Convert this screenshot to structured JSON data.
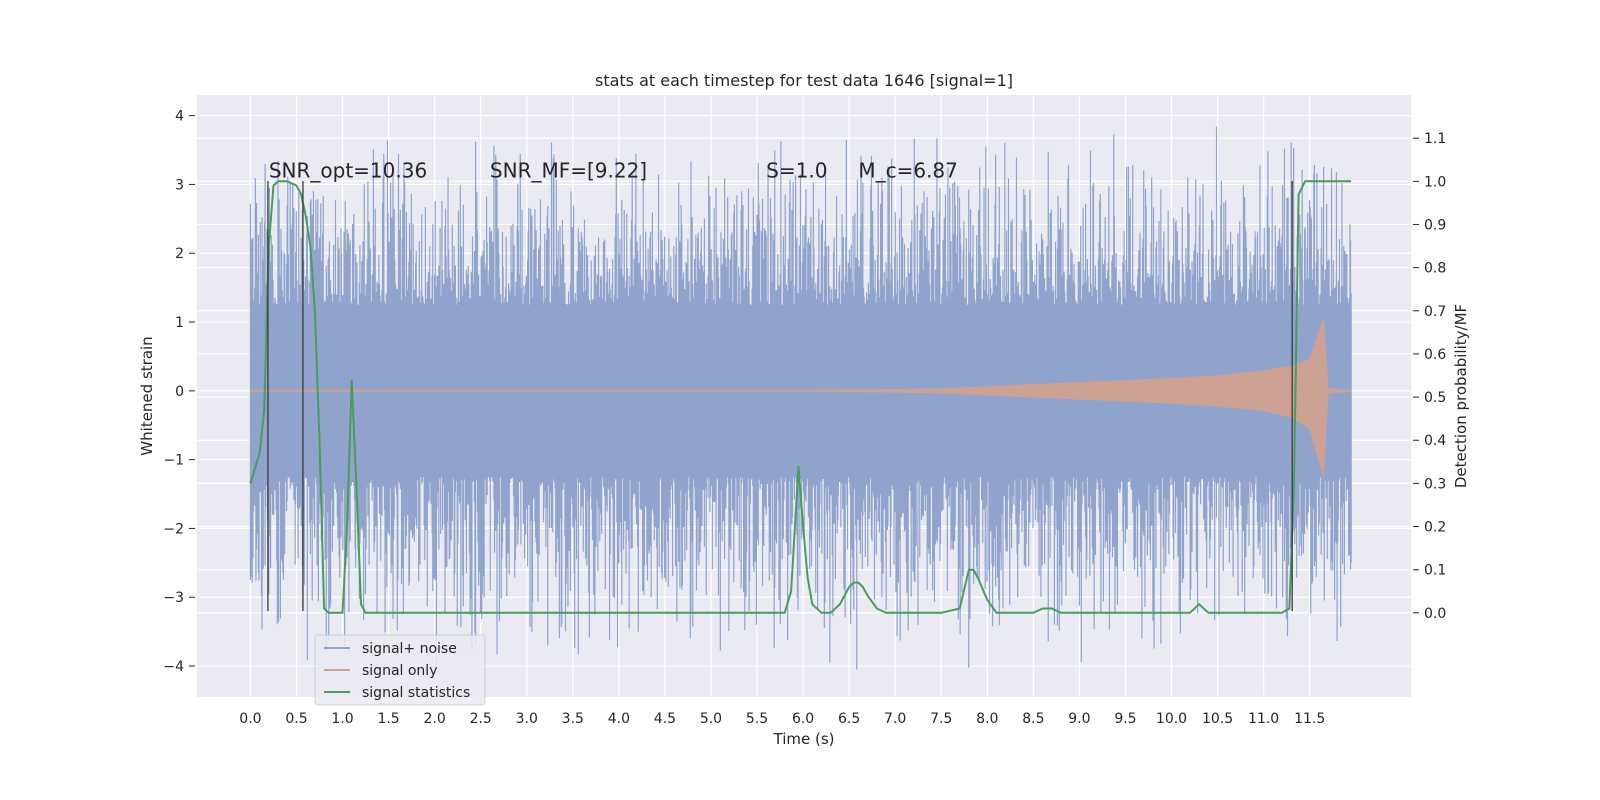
{
  "chart_data": {
    "type": "line",
    "title": "stats at each timestep for test data 1646 [signal=1]",
    "xlabel": "Time (s)",
    "ylabel": "Whitened strain",
    "ylabel_right": "Detection probability/MF",
    "xlim": [
      -0.58,
      12.6
    ],
    "ylim": [
      -4.45,
      4.3
    ],
    "ylim_right": [
      -0.195,
      1.2
    ],
    "xticks": [
      0.0,
      0.5,
      1.0,
      1.5,
      2.0,
      2.5,
      3.0,
      3.5,
      4.0,
      4.5,
      5.0,
      5.5,
      6.0,
      6.5,
      7.0,
      7.5,
      8.0,
      8.5,
      9.0,
      9.5,
      10.0,
      10.5,
      11.0,
      11.5
    ],
    "xtick_labels": [
      "0.0",
      "0.5",
      "1.0",
      "1.5",
      "2.0",
      "2.5",
      "3.0",
      "3.5",
      "4.0",
      "4.5",
      "5.0",
      "5.5",
      "6.0",
      "6.5",
      "7.0",
      "7.5",
      "8.0",
      "8.5",
      "9.0",
      "9.5",
      "10.0",
      "10.5",
      "11.0",
      "11.5"
    ],
    "yticks": [
      -4,
      -3,
      -2,
      -1,
      0,
      1,
      2,
      3,
      4
    ],
    "ytick_labels": [
      "−4",
      "−3",
      "−2",
      "−1",
      "0",
      "1",
      "2",
      "3",
      "4"
    ],
    "yticks_right": [
      0.0,
      0.1,
      0.2,
      0.3,
      0.4,
      0.5,
      0.6,
      0.7,
      0.8,
      0.9,
      1.0,
      1.1
    ],
    "ytick_labels_right": [
      "0.0",
      "0.1",
      "0.2",
      "0.3",
      "0.4",
      "0.5",
      "0.6",
      "0.7",
      "0.8",
      "0.9",
      "1.0",
      "1.1"
    ],
    "grid": true,
    "legend_position": "lower-left",
    "annotations": [
      {
        "text": "SNR_opt=10.36",
        "x": 0.2,
        "y": 3.1
      },
      {
        "text": "SNR_MF=[9.22]",
        "x": 2.6,
        "y": 3.1
      },
      {
        "text": "S=1.0",
        "x": 5.6,
        "y": 3.1
      },
      {
        "text": "M_c=6.87",
        "x": 6.6,
        "y": 3.1
      }
    ],
    "vertical_markers": [
      {
        "x": 0.19,
        "ymin": -3.2,
        "ymax": 3.05
      },
      {
        "x": 0.57,
        "ymin": -3.2,
        "ymax": 3.05
      },
      {
        "x": 11.31,
        "ymin": -3.2,
        "ymax": 3.05
      }
    ],
    "series": [
      {
        "name": "signal+ noise",
        "color": "#8fa3cc",
        "axis": "left",
        "duration": 11.95,
        "band_core": 1.25,
        "max_amplitude": 3.9,
        "min_amplitude": -4.1
      },
      {
        "name": "signal only",
        "color": "#d4a08f",
        "axis": "left",
        "x": [
          0.0,
          6.0,
          7.0,
          7.5,
          8.0,
          9.0,
          10.0,
          10.5,
          11.0,
          11.3,
          11.5,
          11.65,
          11.7,
          11.95
        ],
        "upper": [
          0.01,
          0.01,
          0.02,
          0.03,
          0.06,
          0.12,
          0.18,
          0.22,
          0.29,
          0.36,
          0.45,
          1.05,
          0.03,
          0.01
        ],
        "lower": [
          -0.01,
          -0.01,
          -0.02,
          -0.03,
          -0.06,
          -0.12,
          -0.18,
          -0.22,
          -0.29,
          -0.38,
          -0.55,
          -1.25,
          -0.03,
          -0.01
        ]
      },
      {
        "name": "signal statistics",
        "color": "#4a9c5a",
        "axis": "right",
        "x": [
          0.0,
          0.1,
          0.15,
          0.2,
          0.25,
          0.3,
          0.4,
          0.5,
          0.55,
          0.6,
          0.65,
          0.7,
          0.75,
          0.8,
          0.85,
          0.9,
          1.0,
          1.05,
          1.1,
          1.15,
          1.2,
          1.25,
          1.3,
          1.5,
          2.0,
          2.5,
          3.0,
          3.5,
          4.0,
          4.5,
          5.0,
          5.5,
          5.8,
          5.87,
          5.95,
          6.0,
          6.05,
          6.1,
          6.2,
          6.3,
          6.4,
          6.5,
          6.55,
          6.6,
          6.65,
          6.7,
          6.8,
          6.9,
          7.0,
          7.5,
          7.7,
          7.8,
          7.85,
          7.9,
          8.0,
          8.1,
          8.2,
          8.5,
          8.6,
          8.7,
          8.8,
          9.0,
          9.5,
          10.0,
          10.1,
          10.2,
          10.3,
          10.4,
          10.5,
          10.8,
          11.0,
          11.2,
          11.28,
          11.33,
          11.38,
          11.45,
          11.6,
          11.95
        ],
        "values": [
          0.3,
          0.37,
          0.47,
          0.85,
          0.99,
          1.0,
          1.0,
          0.99,
          0.97,
          0.92,
          0.85,
          0.7,
          0.4,
          0.01,
          0.0,
          0.0,
          0.0,
          0.2,
          0.54,
          0.3,
          0.02,
          0.0,
          0.0,
          0.0,
          0.0,
          0.0,
          0.0,
          0.0,
          0.0,
          0.0,
          0.0,
          0.0,
          0.0,
          0.05,
          0.34,
          0.2,
          0.08,
          0.02,
          0.0,
          0.0,
          0.02,
          0.06,
          0.07,
          0.07,
          0.06,
          0.04,
          0.01,
          0.0,
          0.0,
          0.0,
          0.01,
          0.1,
          0.1,
          0.08,
          0.03,
          0.0,
          0.0,
          0.0,
          0.01,
          0.01,
          0.0,
          0.0,
          0.0,
          0.0,
          0.0,
          0.0,
          0.02,
          0.0,
          0.0,
          0.0,
          0.0,
          0.0,
          0.01,
          0.3,
          0.97,
          1.0,
          1.0,
          1.0
        ]
      }
    ]
  }
}
